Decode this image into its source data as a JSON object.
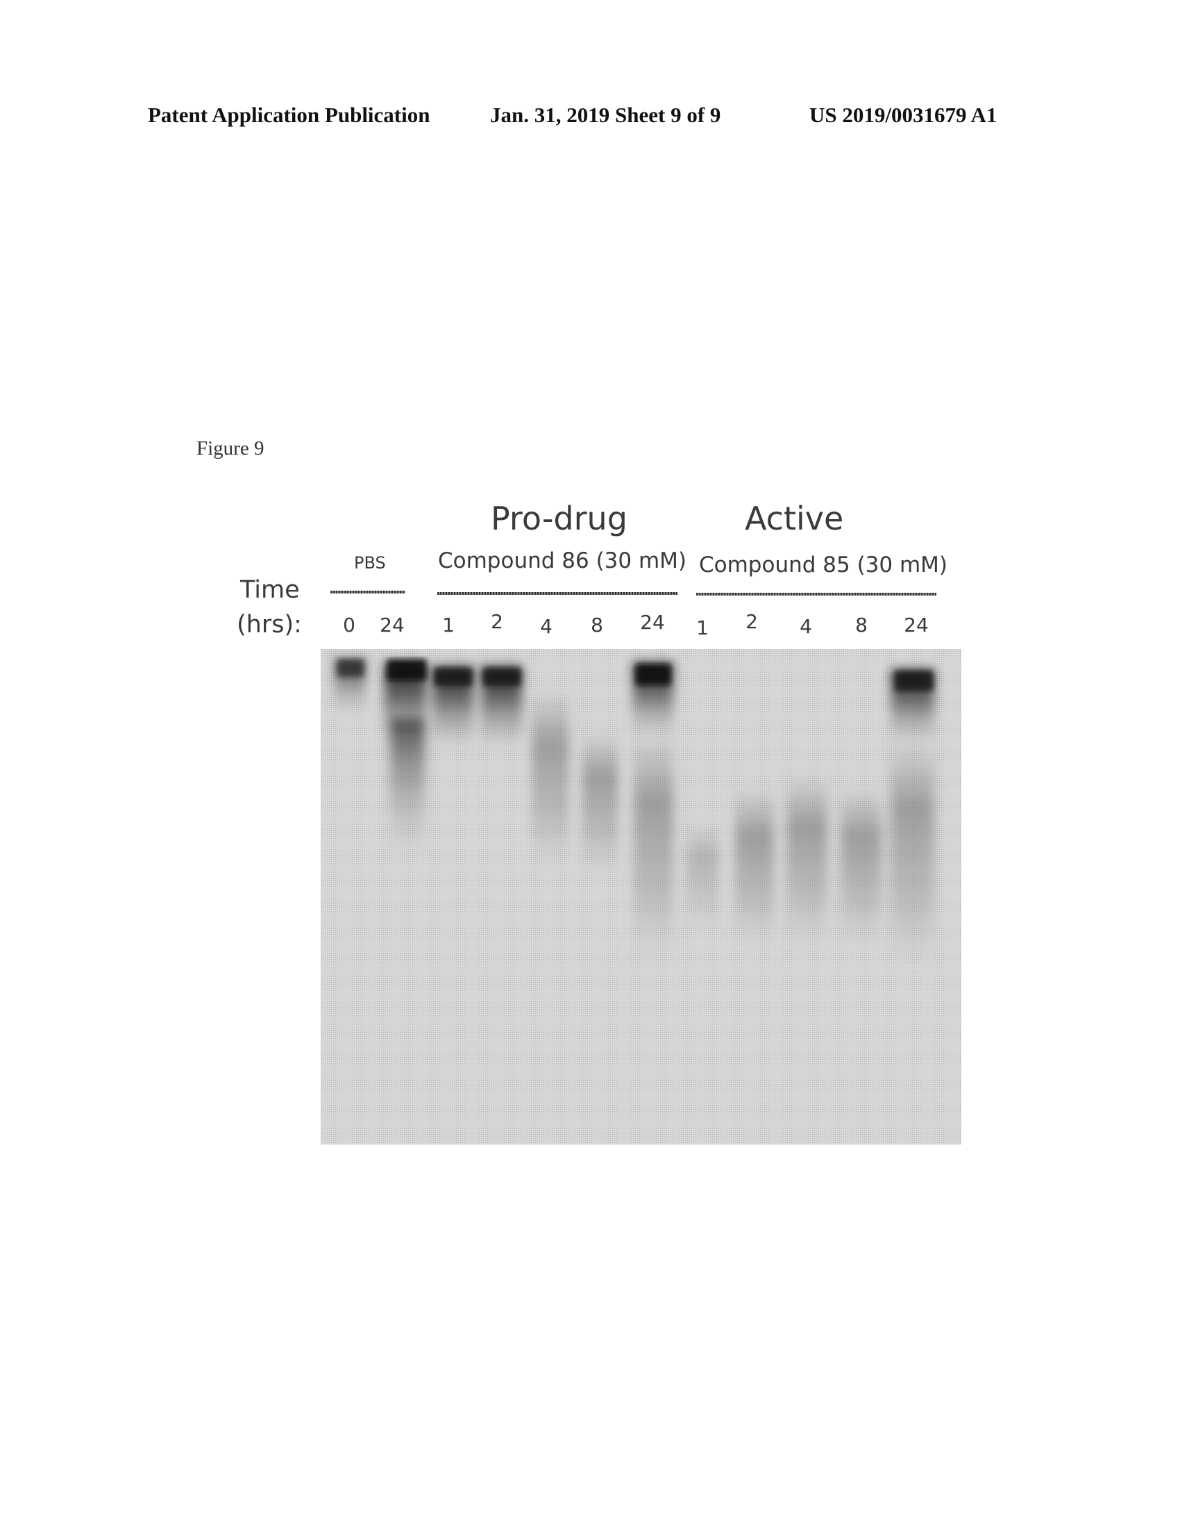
{
  "header": {
    "left": "Patent Application Publication",
    "center": "Jan. 31, 2019  Sheet 9 of 9",
    "right": "US 2019/0031679 A1"
  },
  "figure": {
    "label": "Figure 9",
    "axis_label_line1": "Time",
    "axis_label_line2": "(hrs):",
    "title_prodrug": "Pro-drug",
    "title_active": "Active",
    "groups": {
      "pbs": {
        "label": "PBS",
        "lanes": [
          "0",
          "24"
        ]
      },
      "prodrug": {
        "label": "Compound 86 (30 mM)",
        "lanes": [
          "1",
          "2",
          "4",
          "8",
          "24"
        ]
      },
      "active": {
        "label": "Compound 85 (30 mM)",
        "lanes": [
          "1",
          "2",
          "4",
          "8",
          "24"
        ]
      }
    }
  }
}
